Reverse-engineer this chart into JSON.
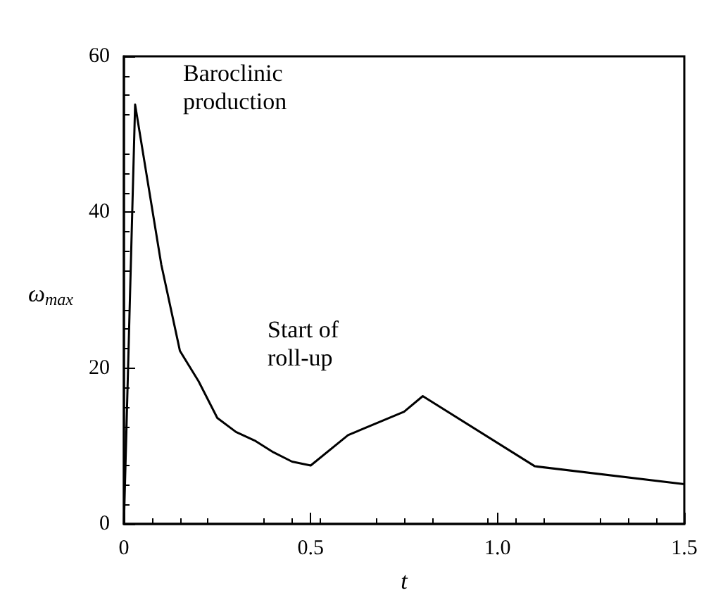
{
  "chart_data": {
    "type": "line",
    "xlabel": "t",
    "ylabel": "ω$_{max}$",
    "annotations": [
      "Baroclinic production",
      "Start of roll-up"
    ],
    "x": [
      0,
      0.03,
      0.1,
      0.15,
      0.2,
      0.25,
      0.3,
      0.35,
      0.4,
      0.45,
      0.5,
      0.6,
      0.75,
      0.8,
      1.1,
      1.5
    ],
    "series": [
      {
        "color": "#000000",
        "values": [
          0,
          53.8,
          33.3,
          22.2,
          18.3,
          13.6,
          11.8,
          10.7,
          9.2,
          8.0,
          7.5,
          11.4,
          14.4,
          16.4,
          7.4,
          5.1
        ]
      }
    ],
    "xlim": [
      0,
      1.5
    ],
    "xticks": [
      0,
      0.5,
      {
        "value": 1,
        "label": "1.0"
      },
      1.5
    ],
    "ylim": [
      0,
      60
    ],
    "yticks": [
      0,
      20,
      40,
      60
    ],
    "grid": false,
    "marker": "none",
    "line_style": "solid"
  }
}
